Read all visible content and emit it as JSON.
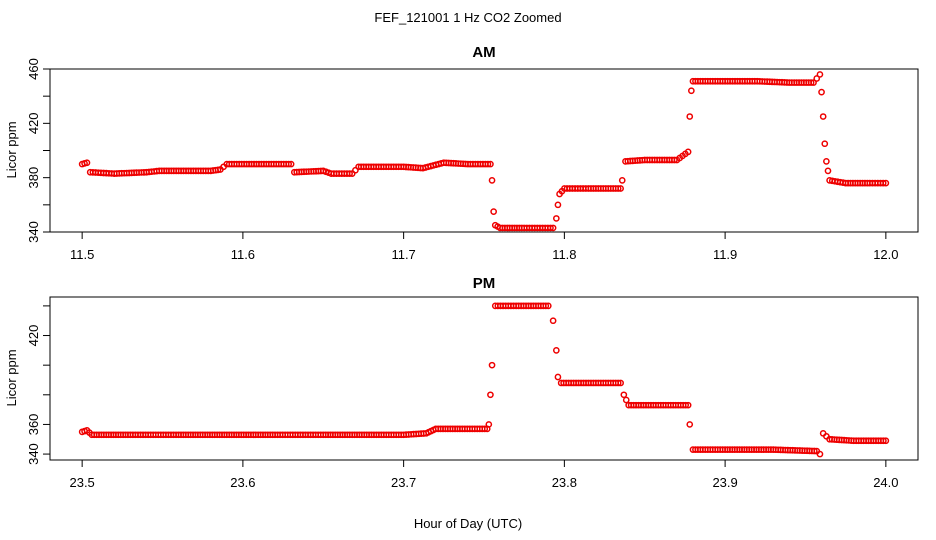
{
  "title": "FEF_121001  1 Hz CO2 Zoomed",
  "xlabel": "Hour of Day (UTC)",
  "colors": {
    "points": "#ee0000",
    "axes": "#000000",
    "background": "#ffffff"
  },
  "chart_data": [
    {
      "type": "scatter",
      "title": "AM",
      "xlabel": "Hour of Day (UTC)",
      "ylabel": "Licor ppm",
      "xlim": [
        11.48,
        12.02
      ],
      "ylim": [
        340,
        460
      ],
      "xticks": [
        "11.5",
        "11.6",
        "11.7",
        "11.8",
        "11.9",
        "12.0"
      ],
      "yticks": [
        "340",
        "380",
        "420",
        "460"
      ],
      "grid": false,
      "series": [
        {
          "marker": "open-circle",
          "x": [
            11.5,
            11.503,
            11.505,
            11.52,
            11.54,
            11.548,
            11.56,
            11.58,
            11.586,
            11.59,
            11.61,
            11.63,
            11.632,
            11.65,
            11.655,
            11.668,
            11.672,
            11.7,
            11.712,
            11.725,
            11.74,
            11.754,
            11.755,
            11.756,
            11.757,
            11.76,
            11.775,
            11.793,
            11.795,
            11.796,
            11.797,
            11.8,
            11.815,
            11.835,
            11.836,
            11.838,
            11.85,
            11.87,
            11.877,
            11.878,
            11.879,
            11.88,
            11.9,
            11.92,
            11.94,
            11.955,
            11.959,
            11.96,
            11.961,
            11.962,
            11.963,
            11.964,
            11.965,
            11.975,
            11.99,
            12.0
          ],
          "y": [
            390,
            391,
            384,
            383,
            384,
            385,
            385,
            385,
            386,
            390,
            390,
            390,
            384,
            385,
            383,
            383,
            388,
            388,
            387,
            391,
            390,
            390,
            378,
            355,
            345,
            343,
            343,
            343,
            350,
            360,
            368,
            372,
            372,
            372,
            378,
            392,
            393,
            393,
            399,
            425,
            444,
            451,
            451,
            451,
            450,
            450,
            456,
            443,
            425,
            405,
            392,
            385,
            378,
            376,
            376,
            376
          ]
        }
      ]
    },
    {
      "type": "scatter",
      "title": "PM",
      "xlabel": "Hour of Day (UTC)",
      "ylabel": "Licor ppm",
      "xlim": [
        23.48,
        24.02
      ],
      "ylim": [
        336,
        446
      ],
      "xticks": [
        "23.5",
        "23.6",
        "23.7",
        "23.8",
        "23.9",
        "24.0"
      ],
      "yticks": [
        "340",
        "360",
        "420"
      ],
      "grid": false,
      "series": [
        {
          "marker": "open-circle",
          "x": [
            23.5,
            23.503,
            23.506,
            23.53,
            23.56,
            23.59,
            23.62,
            23.65,
            23.68,
            23.7,
            23.714,
            23.72,
            23.735,
            23.752,
            23.753,
            23.754,
            23.755,
            23.757,
            23.77,
            23.79,
            23.793,
            23.795,
            23.796,
            23.798,
            23.815,
            23.835,
            23.837,
            23.84,
            23.86,
            23.877,
            23.878,
            23.88,
            23.9,
            23.93,
            23.957,
            23.959,
            23.961,
            23.965,
            23.98,
            24.0
          ],
          "y": [
            355,
            356,
            353,
            353,
            353,
            353,
            353,
            353,
            353,
            353,
            354,
            357,
            357,
            357,
            360,
            380,
            400,
            440,
            440,
            440,
            430,
            410,
            392,
            388,
            388,
            388,
            380,
            373,
            373,
            373,
            360,
            343,
            343,
            343,
            342,
            340,
            354,
            350,
            349,
            349
          ]
        }
      ]
    }
  ]
}
